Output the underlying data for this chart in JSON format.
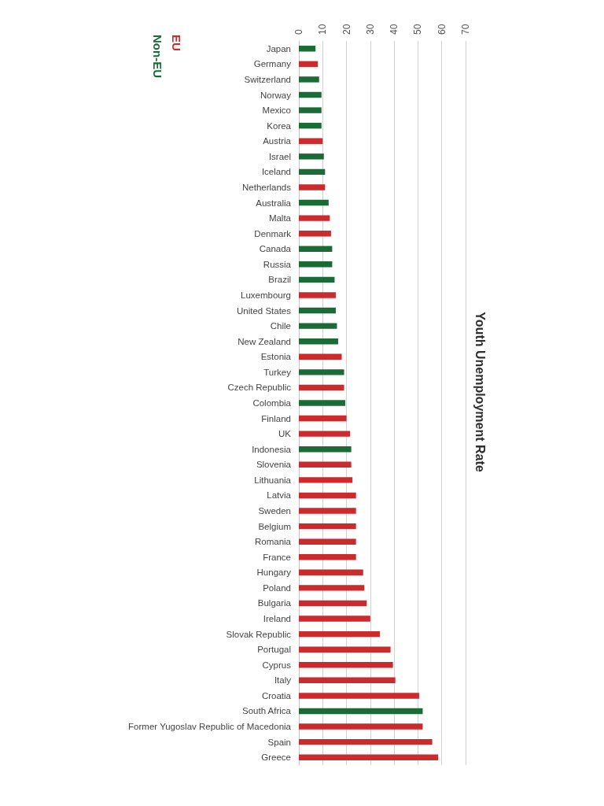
{
  "chart_data": {
    "type": "bar",
    "orientation": "horizontal",
    "title": "Youth Unemployment Rate",
    "categories": [
      "Japan",
      "Germany",
      "Switzerland",
      "Norway",
      "Mexico",
      "Korea",
      "Austria",
      "Israel",
      "Iceland",
      "Netherlands",
      "Australia",
      "Malta",
      "Denmark",
      "Canada",
      "Russia",
      "Brazil",
      "Luxembourg",
      "United States",
      "Chile",
      "New Zealand",
      "Estonia",
      "Turkey",
      "Czech Republic",
      "Colombia",
      "Finland",
      "UK",
      "Indonesia",
      "Slovenia",
      "Lithuania",
      "Latvia",
      "Sweden",
      "Belgium",
      "Romania",
      "France",
      "Hungary",
      "Poland",
      "Bulgaria",
      "Ireland",
      "Slovak Republic",
      "Portugal",
      "Cyprus",
      "Italy",
      "Croatia",
      "South Africa",
      "Former Yugoslav Republic of Macedonia",
      "Spain",
      "Greece"
    ],
    "series": [
      {
        "name": "EU",
        "color": "#cc2b2e",
        "values": [
          null,
          8,
          null,
          null,
          null,
          null,
          10,
          null,
          null,
          11,
          null,
          13,
          13.5,
          null,
          null,
          null,
          15.5,
          null,
          null,
          null,
          18,
          null,
          19,
          null,
          20,
          21.5,
          null,
          22,
          22.5,
          24,
          24,
          24,
          24,
          24,
          27,
          27.5,
          28.5,
          30,
          34,
          38.5,
          39.5,
          40.5,
          50.5,
          null,
          52,
          56,
          58.5
        ]
      },
      {
        "name": "Non-EU",
        "color": "#1b6b36",
        "values": [
          7,
          null,
          8.5,
          9.5,
          9.5,
          9.5,
          null,
          10.5,
          11,
          null,
          12.5,
          null,
          null,
          14,
          14,
          15,
          null,
          15.5,
          16,
          16.5,
          null,
          19,
          null,
          19.5,
          null,
          null,
          22,
          null,
          null,
          null,
          null,
          null,
          null,
          null,
          null,
          null,
          null,
          null,
          null,
          null,
          null,
          null,
          null,
          52,
          null,
          null,
          null
        ]
      }
    ],
    "xlim": [
      0,
      70
    ],
    "xticks": [
      0,
      10,
      20,
      30,
      40,
      50,
      60,
      70
    ],
    "grid": "x",
    "legend": "top left"
  }
}
